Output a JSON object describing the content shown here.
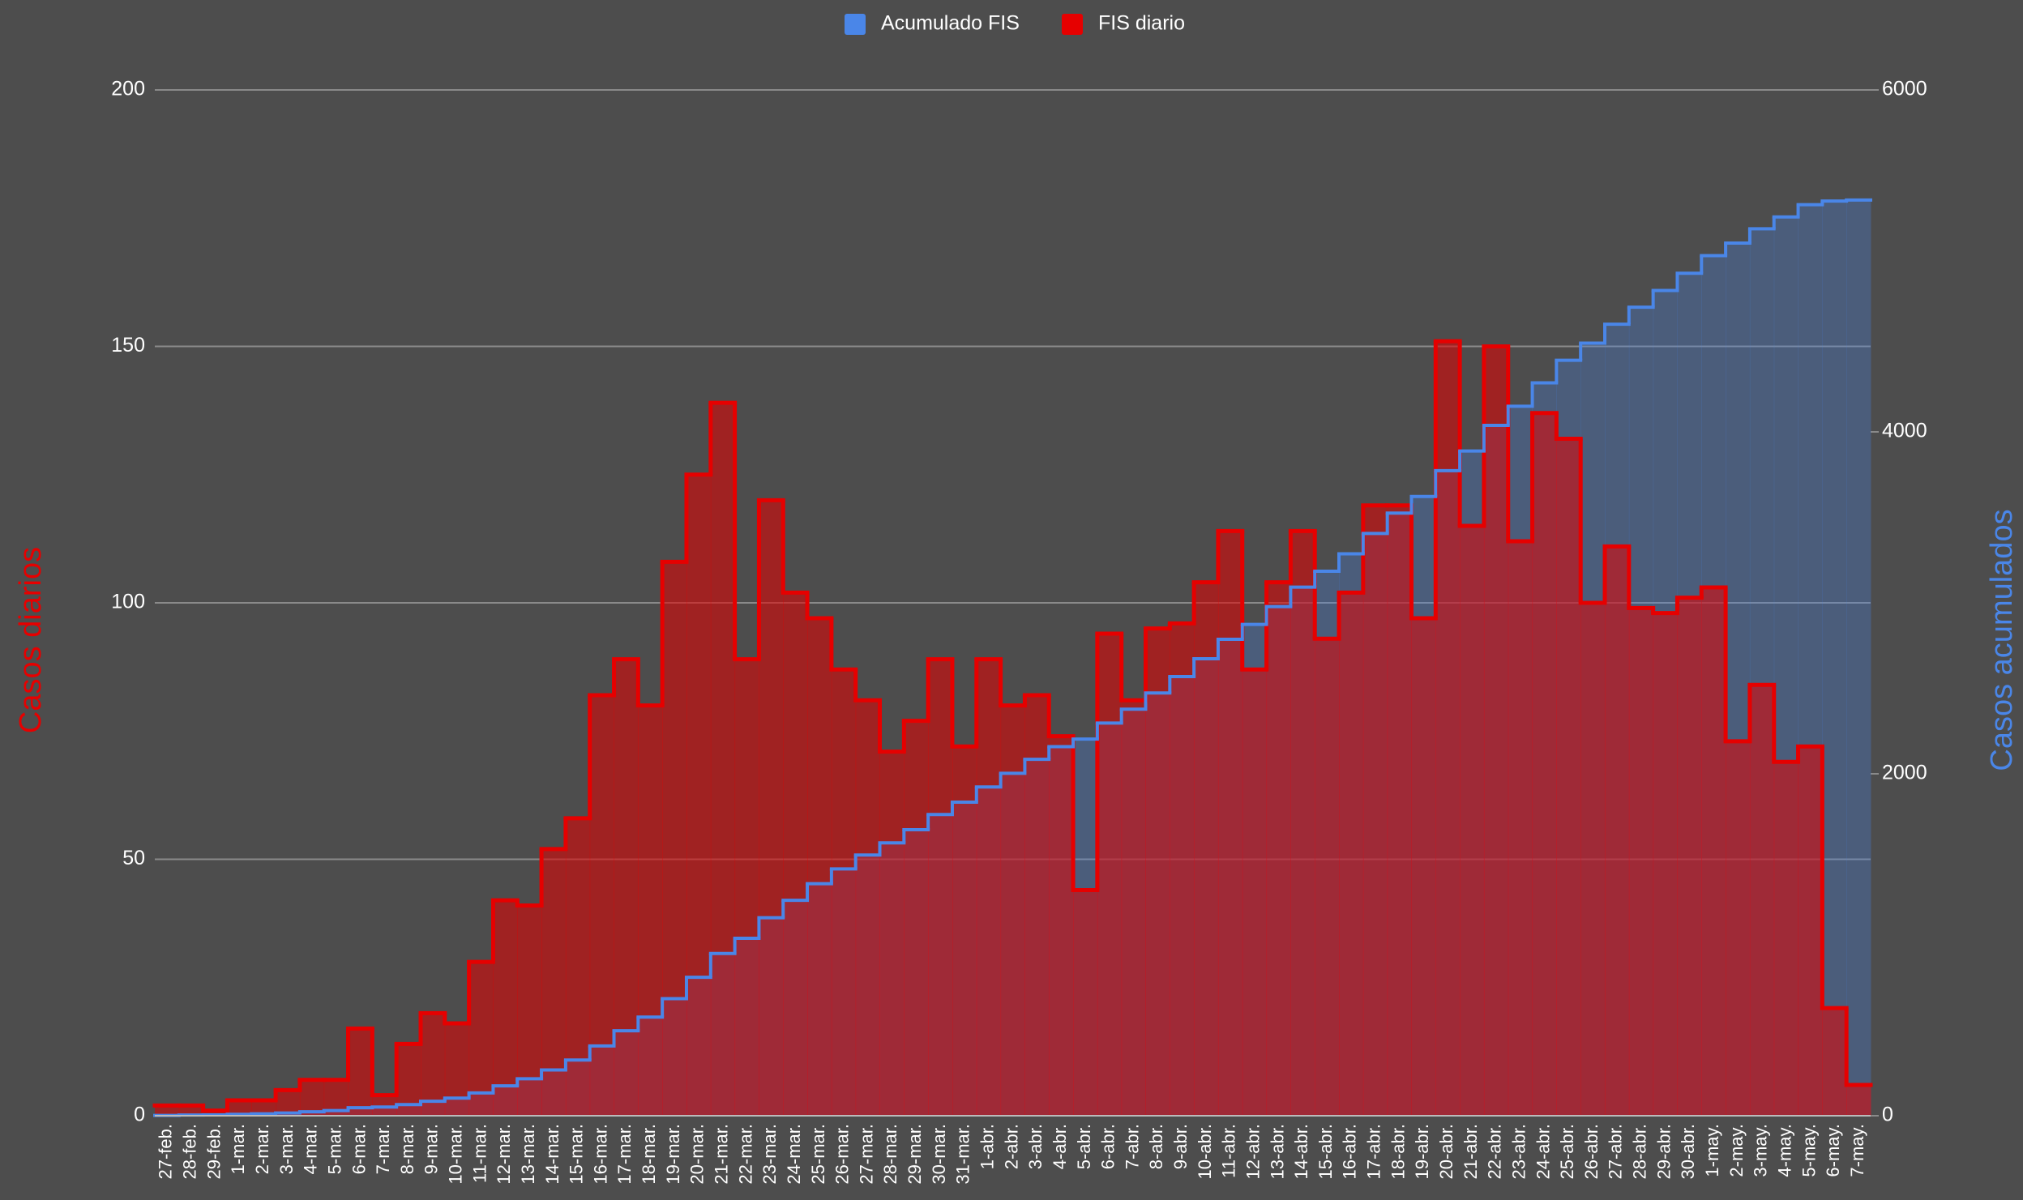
{
  "chart_data": {
    "type": "stepped-area",
    "categories": [
      "27-feb.",
      "28-feb.",
      "29-feb.",
      "1-mar.",
      "2-mar.",
      "3-mar.",
      "4-mar.",
      "5-mar.",
      "6-mar.",
      "7-mar.",
      "8-mar.",
      "9-mar.",
      "10-mar.",
      "11-mar.",
      "12-mar.",
      "13-mar.",
      "14-mar.",
      "15-mar.",
      "16-mar.",
      "17-mar.",
      "18-mar.",
      "19-mar.",
      "20-mar.",
      "21-mar.",
      "22-mar.",
      "23-mar.",
      "24-mar.",
      "25-mar.",
      "26-mar.",
      "27-mar.",
      "28-mar.",
      "29-mar.",
      "30-mar.",
      "31-mar.",
      "1-abr.",
      "2-abr.",
      "3-abr.",
      "4-abr.",
      "5-abr.",
      "6-abr.",
      "7-abr.",
      "8-abr.",
      "9-abr.",
      "10-abr.",
      "11-abr.",
      "12-abr.",
      "13-abr.",
      "14-abr.",
      "15-abr.",
      "16-abr.",
      "17-abr.",
      "18-abr.",
      "19-abr.",
      "20-abr.",
      "21-abr.",
      "22-abr.",
      "23-abr.",
      "24-abr.",
      "25-abr.",
      "26-abr.",
      "27-abr.",
      "28-abr.",
      "29-abr.",
      "30-abr.",
      "1-may.",
      "2-may.",
      "3-may.",
      "4-may.",
      "5-may.",
      "6-may.",
      "7-may."
    ],
    "series": [
      {
        "name": "Acumulado FIS",
        "color": "#4a86e8",
        "axis": "y2",
        "values": [
          2,
          4,
          5,
          8,
          11,
          16,
          23,
          30,
          47,
          51,
          65,
          85,
          103,
          133,
          175,
          216,
          268,
          326,
          408,
          497,
          577,
          685,
          810,
          949,
          1038,
          1158,
          1260,
          1357,
          1444,
          1525,
          1596,
          1673,
          1762,
          1834,
          1923,
          2003,
          2085,
          2159,
          2203,
          2297,
          2378,
          2473,
          2569,
          2673,
          2787,
          2874,
          2978,
          3092,
          3185,
          3287,
          3406,
          3525,
          3622,
          3773,
          3888,
          4038,
          4150,
          4287,
          4419,
          4519,
          4630,
          4729,
          4827,
          4928,
          5031,
          5104,
          5188,
          5257,
          5329,
          5350,
          5356
        ]
      },
      {
        "name": "FIS diario",
        "color": "#e60000",
        "values": [
          2,
          2,
          1,
          3,
          3,
          5,
          7,
          7,
          17,
          4,
          14,
          20,
          18,
          30,
          42,
          41,
          52,
          58,
          82,
          89,
          80,
          108,
          125,
          139,
          89,
          120,
          102,
          97,
          87,
          81,
          71,
          77,
          89,
          72,
          89,
          80,
          82,
          74,
          44,
          94,
          81,
          95,
          96,
          104,
          114,
          87,
          104,
          114,
          93,
          102,
          119,
          119,
          97,
          151,
          115,
          150,
          112,
          137,
          132,
          100,
          111,
          99,
          98,
          101,
          103,
          73,
          84,
          69,
          72,
          21,
          6
        ]
      }
    ],
    "ylabel": "Casos diarios",
    "y2label": "Casos acumulados",
    "ylim": [
      0,
      200
    ],
    "yticks": [
      0,
      50,
      100,
      150,
      200
    ],
    "y2lim": [
      0,
      6000
    ],
    "y2ticks": [
      0,
      2000,
      4000,
      6000
    ],
    "grid": true,
    "legend": "top"
  }
}
